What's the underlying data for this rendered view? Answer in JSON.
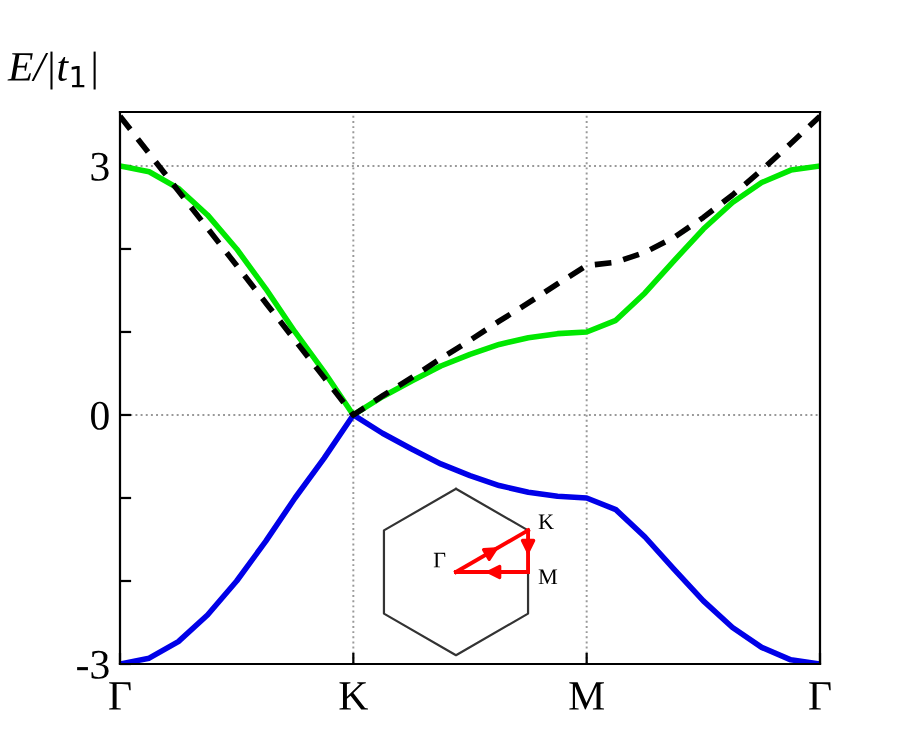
{
  "chart_data": {
    "type": "line",
    "ylabel": "E/|t$_{1}$|",
    "categories": [
      "Γ",
      null,
      null,
      null,
      null,
      null,
      null,
      null,
      "K",
      null,
      null,
      null,
      null,
      null,
      null,
      null,
      "M",
      null,
      null,
      null,
      null,
      null,
      null,
      null,
      "Γ"
    ],
    "series": [
      {
        "color": "#00e800",
        "line_style": "solid",
        "values": [
          3,
          2.93,
          2.73,
          2.41,
          2,
          1.52,
          1,
          0.52,
          0,
          0.22,
          0.41,
          0.59,
          0.73,
          0.85,
          0.93,
          0.98,
          1,
          1.14,
          1.47,
          1.86,
          2.24,
          2.56,
          2.8,
          2.95,
          3
        ]
      },
      {
        "color": "#0000e8",
        "line_style": "solid",
        "values": [
          -3,
          -2.93,
          -2.73,
          -2.41,
          -2,
          -1.52,
          -1,
          -0.52,
          0,
          -0.22,
          -0.41,
          -0.59,
          -0.73,
          -0.85,
          -0.93,
          -0.98,
          -1,
          -1.14,
          -1.47,
          -1.86,
          -2.24,
          -2.56,
          -2.8,
          -2.95,
          -3
        ]
      },
      {
        "color": "#000000",
        "line_style": "dashed",
        "values": [
          3.6,
          3.15,
          2.7,
          2.25,
          1.8,
          1.35,
          0.9,
          0.45,
          0,
          0.23,
          0.45,
          0.68,
          0.9,
          1.13,
          1.35,
          1.58,
          1.8,
          1.84,
          1.96,
          2.14,
          2.38,
          2.65,
          2.95,
          3.27,
          3.6
        ]
      }
    ],
    "ylim": [
      -3,
      3.65
    ],
    "yticks": [
      -3,
      {
        "value": -2,
        "label": null
      },
      {
        "value": -1,
        "label": null
      },
      0,
      {
        "value": 1,
        "label": null
      },
      {
        "value": 2,
        "label": null
      },
      3
    ],
    "grid": true,
    "annotations": [
      "Γ",
      "K",
      "M"
    ]
  }
}
